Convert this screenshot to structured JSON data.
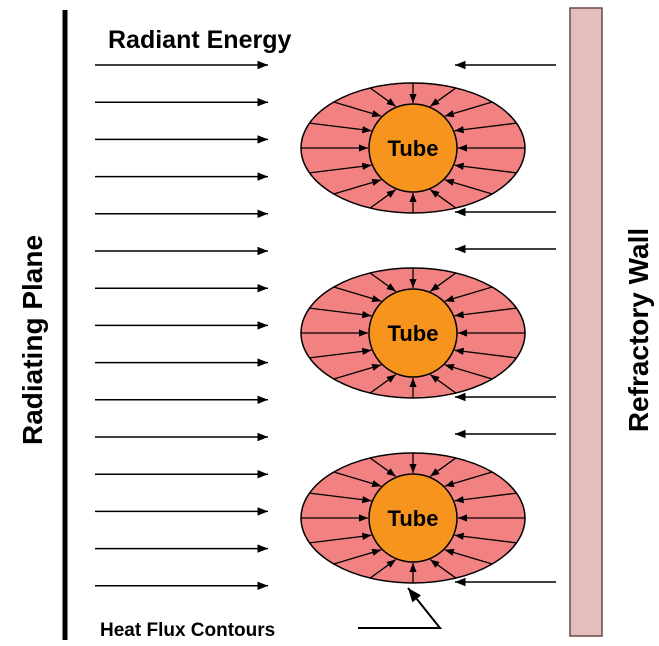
{
  "title": "Radiant Energy",
  "left_label": "Radiating Plane",
  "right_label": "Refractory Wall",
  "tubes": [
    {
      "label": "Tube"
    },
    {
      "label": "Tube"
    },
    {
      "label": "Tube"
    }
  ],
  "contour_label": "Heat Flux Contours"
}
